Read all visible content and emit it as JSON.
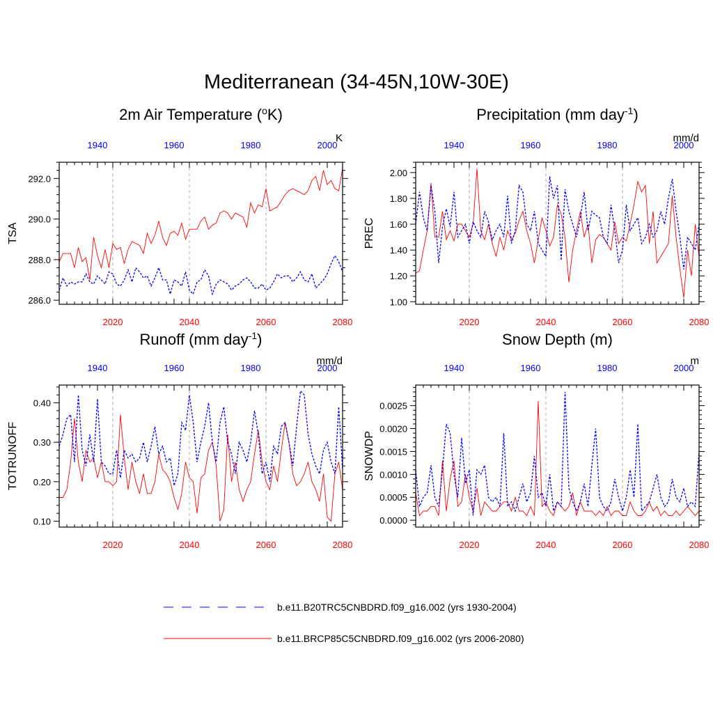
{
  "figure": {
    "title": "Mediterranean (34-45N,10W-30E)"
  },
  "legend": {
    "entries": [
      {
        "label": "b.e11.B20TRC5CNBDRD.f09_g16.002 (yrs 1930-2004)",
        "color": "#0000ff",
        "style": "dashed"
      },
      {
        "label": "b.e11.BRCP85C5CNBDRD.f09_g16.002 (yrs 2006-2080)",
        "color": "#ff0000",
        "style": "solid"
      }
    ]
  },
  "colors": {
    "historical": "#0000ff",
    "future": "#ff0000",
    "grid": "#aaaaaa"
  },
  "chart_data": [
    {
      "type": "line",
      "title": "2m Air Temperature (oK)",
      "ylabel": "TSA",
      "units": "K",
      "ylim": [
        285.8,
        292.8
      ],
      "yticks": [
        286.0,
        288.0,
        290.0,
        292.0
      ],
      "yticklabels": [
        "286.0",
        "288.0",
        "290.0",
        "292.0"
      ],
      "xlim_bottom": [
        2006,
        2080
      ],
      "xticks_bottom": [
        2020,
        2040,
        2060,
        2080
      ],
      "xticks_top": [
        1940,
        1960,
        1980,
        2000
      ],
      "top_offset_years": 76,
      "x_future_start": 2006,
      "x_hist_start": 1930,
      "series": [
        {
          "name": "b.e11.BRCP85C5CNBDRD.f09_g16.002 (yrs 2006-2080)",
          "values": [
            287.9,
            288.3,
            288.3,
            288.3,
            287.6,
            288.6,
            287.9,
            288.1,
            287.0,
            289.1,
            288.2,
            287.6,
            288.5,
            287.6,
            288.8,
            288.5,
            288.6,
            287.8,
            288.5,
            288.9,
            288.8,
            288.7,
            288.3,
            289.3,
            288.8,
            289.2,
            289.9,
            289.1,
            288.7,
            289.3,
            289.4,
            289.2,
            289.8,
            289.0,
            289.5,
            289.5,
            289.5,
            289.9,
            290.1,
            289.5,
            289.7,
            289.8,
            290.3,
            290.4,
            290.3,
            290.0,
            290.3,
            290.2,
            290.1,
            289.6,
            290.8,
            290.3,
            290.7,
            290.6,
            291.5,
            290.4,
            290.5,
            290.6,
            290.9,
            291.2,
            291.4,
            291.5,
            291.4,
            291.3,
            291.2,
            291.4,
            291.9,
            292.1,
            291.4,
            292.4,
            291.7,
            291.9,
            291.5,
            291.4,
            292.5
          ]
        },
        {
          "name": "b.e11.B20TRC5CNBDRD.f09_g16.002 (yrs 1930-2004)",
          "values": [
            286.5,
            287.1,
            286.7,
            286.9,
            286.8,
            286.9,
            286.9,
            287.3,
            286.9,
            286.8,
            287.2,
            287.0,
            286.8,
            287.4,
            287.3,
            286.8,
            286.7,
            287.0,
            287.5,
            286.9,
            287.6,
            287.4,
            287.1,
            287.2,
            286.7,
            287.1,
            287.6,
            287.0,
            287.0,
            286.3,
            287.0,
            286.9,
            286.7,
            287.4,
            286.5,
            286.3,
            286.9,
            287.0,
            287.5,
            287.2,
            286.3,
            286.8,
            287.0,
            286.9,
            286.8,
            286.5,
            286.7,
            286.8,
            287.0,
            287.1,
            286.9,
            286.6,
            286.6,
            286.8,
            286.5,
            286.6,
            286.9,
            287.3,
            287.1,
            287.2,
            287.2,
            286.9,
            287.1,
            287.4,
            287.0,
            286.9,
            287.3,
            286.6,
            286.8,
            287.0,
            287.3,
            287.8,
            288.2,
            287.9,
            287.4
          ]
        }
      ]
    },
    {
      "type": "line",
      "title": "Precipitation (mm day-1)",
      "ylabel": "PREC",
      "units": "mm/d",
      "ylim": [
        0.98,
        2.08
      ],
      "yticks": [
        1.0,
        1.2,
        1.4,
        1.6,
        1.8,
        2.0
      ],
      "yticklabels": [
        "1.00",
        "1.20",
        "1.40",
        "1.60",
        "1.80",
        "2.00"
      ],
      "xlim_bottom": [
        2006,
        2080
      ],
      "xticks_bottom": [
        2020,
        2040,
        2060,
        2080
      ],
      "xticks_top": [
        1940,
        1960,
        1980,
        2000
      ],
      "top_offset_years": 76,
      "x_future_start": 2006,
      "x_hist_start": 1930,
      "series": [
        {
          "name": "b.e11.BRCP85C5CNBDRD.f09_g16.002 (yrs 2006-2080)",
          "values": [
            1.22,
            1.24,
            1.4,
            1.55,
            1.92,
            1.5,
            1.5,
            1.7,
            1.48,
            1.55,
            1.47,
            1.6,
            1.6,
            1.55,
            1.5,
            1.6,
            2.03,
            1.55,
            1.48,
            1.6,
            1.45,
            1.35,
            1.5,
            1.4,
            1.55,
            1.48,
            1.53,
            1.63,
            1.7,
            1.55,
            1.45,
            1.3,
            1.48,
            1.65,
            1.55,
            1.43,
            1.5,
            1.75,
            1.68,
            1.5,
            1.15,
            1.4,
            1.55,
            1.7,
            1.5,
            1.6,
            1.3,
            1.48,
            1.52,
            1.5,
            1.45,
            1.4,
            1.62,
            1.45,
            1.5,
            1.47,
            1.6,
            1.75,
            1.93,
            1.85,
            1.9,
            1.45,
            1.7,
            1.3,
            1.35,
            1.4,
            1.45,
            1.82,
            1.5,
            1.25,
            1.03,
            1.4,
            1.2,
            1.6,
            1.35
          ]
        },
        {
          "name": "b.e11.B20TRC5CNBDRD.f09_g16.002 (yrs 1930-2004)",
          "values": [
            1.6,
            1.85,
            1.65,
            1.55,
            1.9,
            1.7,
            1.3,
            1.58,
            1.72,
            1.58,
            1.85,
            1.5,
            1.55,
            1.6,
            1.45,
            1.62,
            1.55,
            1.5,
            1.7,
            1.62,
            1.48,
            1.55,
            1.6,
            1.5,
            1.82,
            1.45,
            1.55,
            1.9,
            1.85,
            1.6,
            1.55,
            1.7,
            1.45,
            1.4,
            1.35,
            1.97,
            1.8,
            1.9,
            1.32,
            1.87,
            1.7,
            1.6,
            1.5,
            1.65,
            1.85,
            1.55,
            1.7,
            1.67,
            1.65,
            1.5,
            1.45,
            1.75,
            1.55,
            1.3,
            1.4,
            1.75,
            1.55,
            1.6,
            1.65,
            1.45,
            1.5,
            1.6,
            1.5,
            1.55,
            1.7,
            1.6,
            1.8,
            1.95,
            1.7,
            1.5,
            1.25,
            1.5,
            1.45,
            1.4,
            1.6
          ]
        }
      ]
    },
    {
      "type": "line",
      "title": "Runoff (mm day-1)",
      "ylabel": "TOTRUNOFF",
      "units": "mm/d",
      "ylim": [
        0.085,
        0.445
      ],
      "yticks": [
        0.1,
        0.2,
        0.3,
        0.4
      ],
      "yticklabels": [
        "0.10",
        "0.20",
        "0.30",
        "0.40"
      ],
      "xlim_bottom": [
        2006,
        2080
      ],
      "xticks_bottom": [
        2020,
        2040,
        2060,
        2080
      ],
      "xticks_top": [
        1940,
        1960,
        1980,
        2000
      ],
      "top_offset_years": 76,
      "x_future_start": 2006,
      "x_hist_start": 1930,
      "series": [
        {
          "name": "b.e11.BRCP85C5CNBDRD.f09_g16.002 (yrs 2006-2080)",
          "values": [
            0.16,
            0.16,
            0.18,
            0.25,
            0.36,
            0.25,
            0.2,
            0.28,
            0.25,
            0.26,
            0.21,
            0.25,
            0.2,
            0.2,
            0.19,
            0.2,
            0.37,
            0.26,
            0.18,
            0.25,
            0.2,
            0.17,
            0.22,
            0.17,
            0.17,
            0.2,
            0.27,
            0.23,
            0.22,
            0.2,
            0.16,
            0.13,
            0.17,
            0.25,
            0.21,
            0.2,
            0.12,
            0.21,
            0.22,
            0.28,
            0.3,
            0.24,
            0.1,
            0.13,
            0.32,
            0.2,
            0.25,
            0.18,
            0.15,
            0.18,
            0.2,
            0.27,
            0.33,
            0.25,
            0.2,
            0.18,
            0.24,
            0.2,
            0.28,
            0.35,
            0.3,
            0.22,
            0.19,
            0.2,
            0.22,
            0.25,
            0.2,
            0.18,
            0.15,
            0.22,
            0.11,
            0.1,
            0.22,
            0.25,
            0.18
          ]
        },
        {
          "name": "b.e11.B20TRC5CNBDRD.f09_g16.002 (yrs 1930-2004)",
          "values": [
            0.29,
            0.32,
            0.36,
            0.37,
            0.25,
            0.42,
            0.28,
            0.24,
            0.32,
            0.25,
            0.41,
            0.25,
            0.24,
            0.22,
            0.22,
            0.28,
            0.21,
            0.28,
            0.26,
            0.27,
            0.25,
            0.26,
            0.3,
            0.25,
            0.29,
            0.34,
            0.27,
            0.29,
            0.25,
            0.26,
            0.19,
            0.22,
            0.35,
            0.33,
            0.42,
            0.35,
            0.25,
            0.3,
            0.34,
            0.4,
            0.3,
            0.25,
            0.35,
            0.39,
            0.3,
            0.27,
            0.22,
            0.3,
            0.28,
            0.25,
            0.3,
            0.38,
            0.32,
            0.22,
            0.25,
            0.2,
            0.29,
            0.27,
            0.34,
            0.35,
            0.3,
            0.24,
            0.34,
            0.43,
            0.42,
            0.32,
            0.27,
            0.24,
            0.22,
            0.28,
            0.3,
            0.25,
            0.22,
            0.39,
            0.23
          ]
        }
      ]
    },
    {
      "type": "line",
      "title": "Snow Depth (m)",
      "ylabel": "SNOWDP",
      "units": "m",
      "ylim": [
        -0.00015,
        0.00295
      ],
      "yticks": [
        0.0,
        0.0005,
        0.001,
        0.0015,
        0.002,
        0.0025
      ],
      "yticklabels": [
        "0.0000",
        "0.0005",
        "0.0010",
        "0.0015",
        "0.0020",
        "0.0025"
      ],
      "xlim_bottom": [
        2006,
        2080
      ],
      "xticks_bottom": [
        2020,
        2040,
        2060,
        2080
      ],
      "xticks_top": [
        1940,
        1960,
        1980,
        2000
      ],
      "top_offset_years": 76,
      "x_future_start": 2006,
      "x_hist_start": 1930,
      "series": [
        {
          "name": "b.e11.BRCP85C5CNBDRD.f09_g16.002 (yrs 2006-2080)",
          "values": [
            0.0006,
            0.0001,
            0.0002,
            0.0002,
            0.0003,
            0.0003,
            0.0001,
            0.0013,
            0.0002,
            0.0009,
            0.0013,
            0.0003,
            0.0004,
            0.001,
            0.0005,
            0.0002,
            0.0007,
            0.0001,
            0.0004,
            0.0003,
            0.0002,
            0.0002,
            0.0003,
            0.0004,
            0.0004,
            0.0002,
            0.0005,
            0.0002,
            0.0002,
            0.0001,
            0.0003,
            0.0001,
            0.0026,
            0.0003,
            0.0004,
            0.0002,
            0.0001,
            0.0004,
            0.0003,
            0.0002,
            0.0003,
            0.0006,
            0.0001,
            0.0004,
            0.0002,
            0.0002,
            0.0002,
            0.0001,
            0.0002,
            0.0001,
            0.0003,
            0.0001,
            0.0002,
            0.0002,
            0.0001,
            0.0001,
            0.0004,
            0.0002,
            0.0001,
            0.0001,
            0.0002,
            0.0004,
            0.0002,
            0.0003,
            0.0001,
            0.0002,
            0.0001,
            0.0001,
            0.0002,
            0.0001,
            0.0002,
            0.0003,
            0.0002,
            0.0001,
            0.0002
          ]
        },
        {
          "name": "b.e11.B20TRC5CNBDRD.f09_g16.002 (yrs 1930-2004)",
          "values": [
            0.0011,
            0.0003,
            0.0005,
            0.0006,
            0.0012,
            0.0005,
            0.0003,
            0.0011,
            0.0021,
            0.0019,
            0.001,
            0.0005,
            0.0018,
            0.0008,
            0.0011,
            0.0001,
            0.0011,
            0.001,
            0.0012,
            0.0005,
            0.0004,
            0.0005,
            0.0003,
            0.0019,
            0.0003,
            0.0004,
            0.0002,
            0.0005,
            0.0008,
            0.0004,
            0.0006,
            0.0014,
            0.0005,
            0.0006,
            0.0003,
            0.001,
            0.0002,
            0.0004,
            0.0003,
            0.0028,
            0.0007,
            0.0004,
            0.0002,
            0.0004,
            0.0008,
            0.0003,
            0.0012,
            0.002,
            0.0005,
            0.0003,
            0.0002,
            0.0004,
            0.0009,
            0.0005,
            0.0002,
            0.0005,
            0.0011,
            0.0005,
            0.0021,
            0.0002,
            0.0003,
            0.0004,
            0.0007,
            0.001,
            0.0005,
            0.0003,
            0.0004,
            0.0009,
            0.0005,
            0.0004,
            0.0007,
            0.0003,
            0.0004,
            0.0003,
            0.0015
          ]
        }
      ]
    }
  ]
}
